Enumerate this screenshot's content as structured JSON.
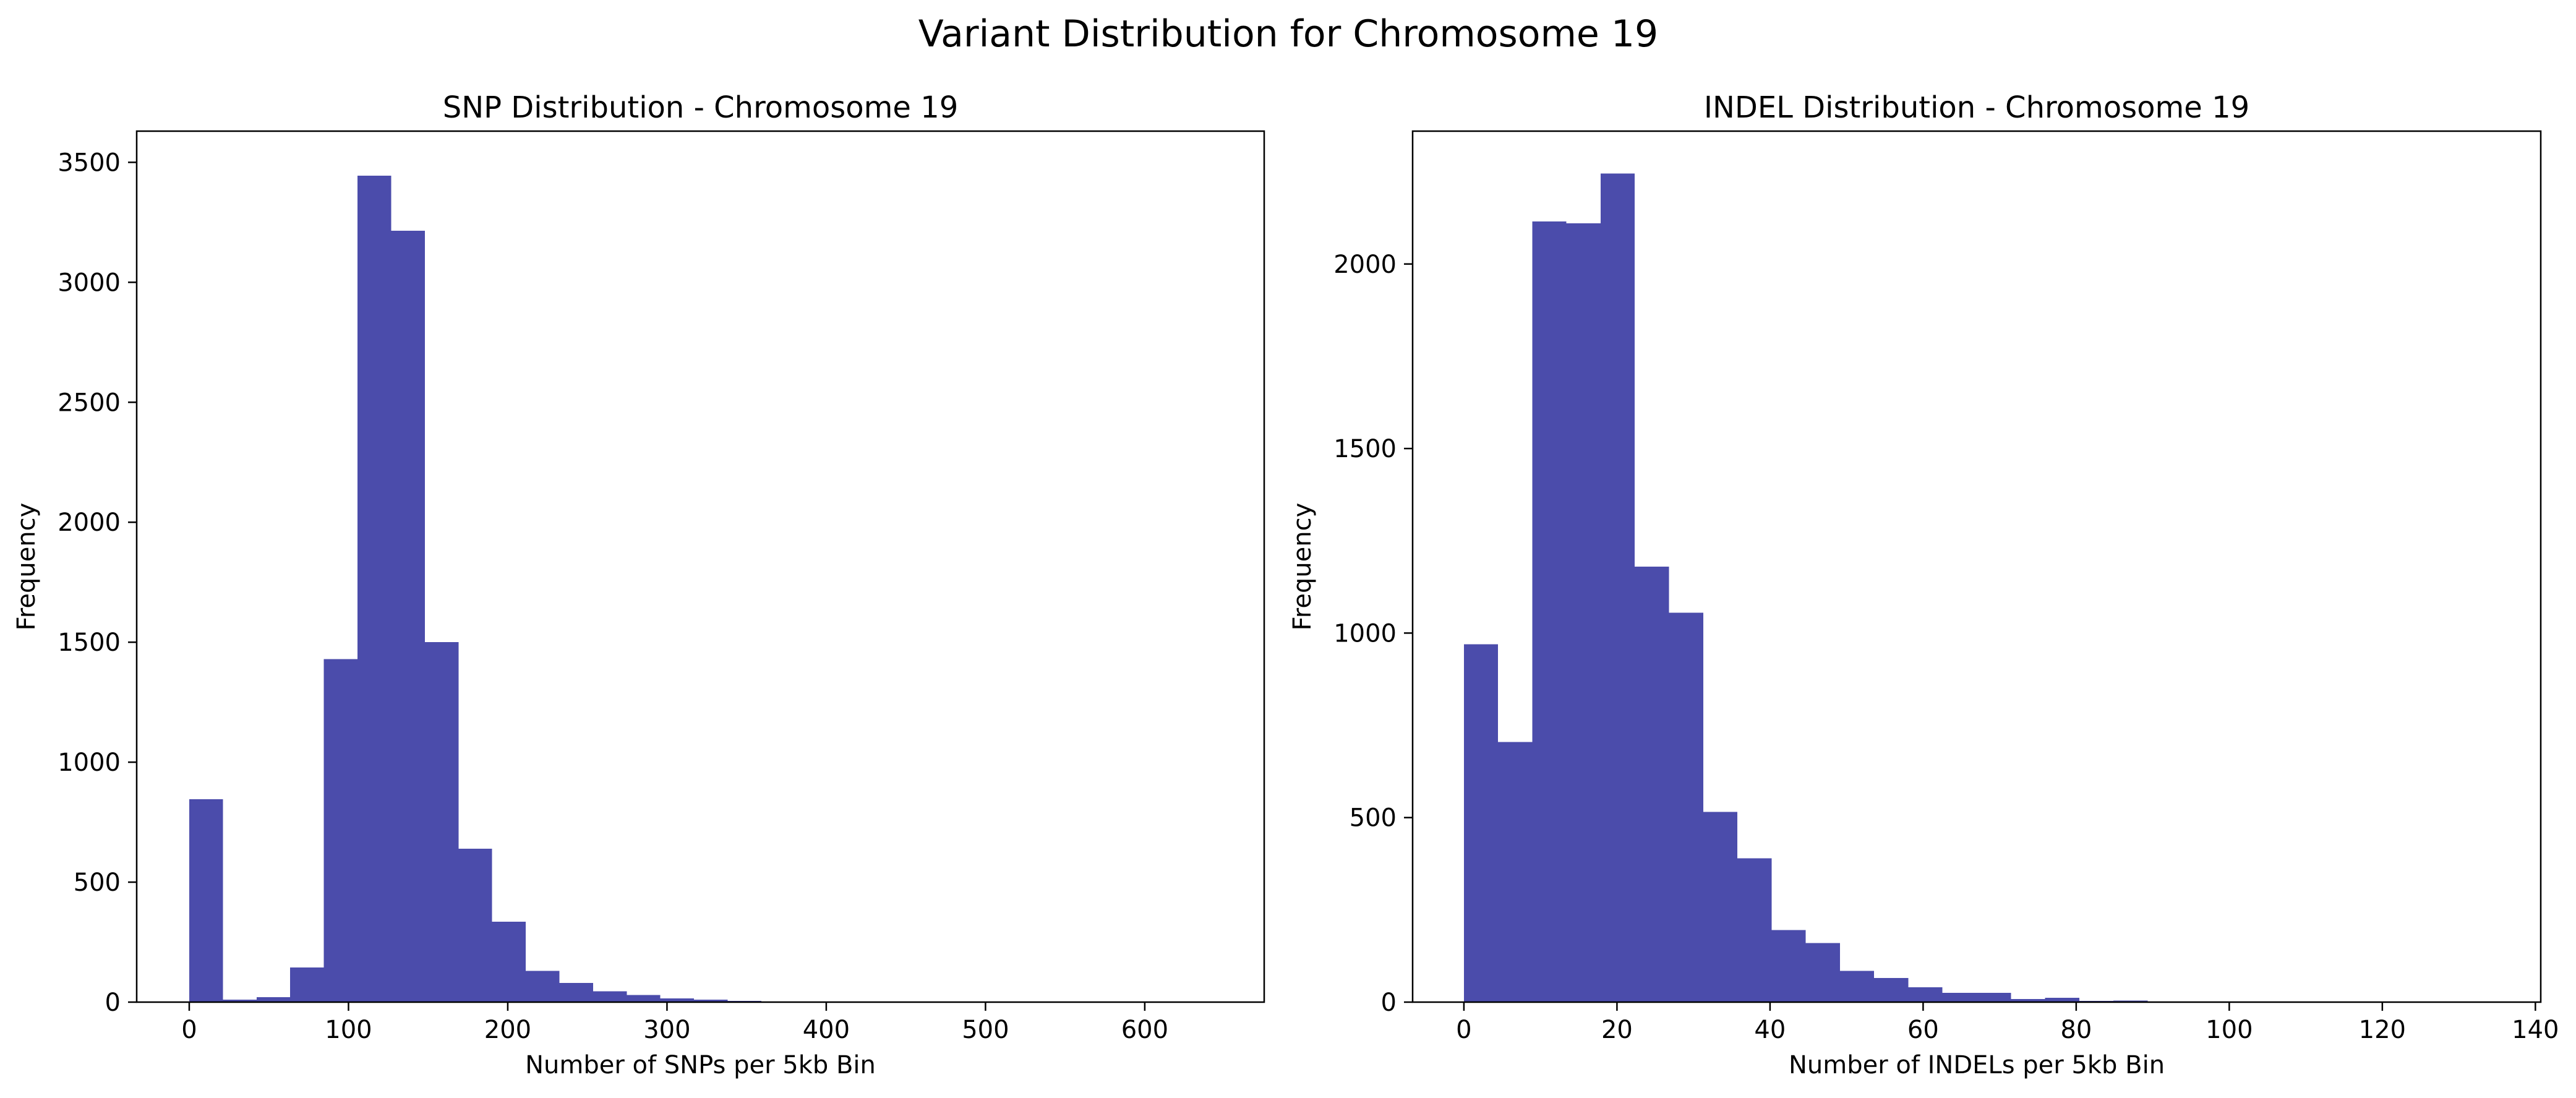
{
  "figure": {
    "title": "Variant Distribution for Chromosome 19",
    "bar_color": "#4b4cab"
  },
  "chart_data": [
    {
      "type": "bar",
      "title": "SNP Distribution - Chromosome 19",
      "xlabel": "Number of SNPs per 5kb Bin",
      "ylabel": "Frequency",
      "xlim": [
        -33,
        675
      ],
      "ylim": [
        0,
        3630
      ],
      "xticks": [
        0,
        100,
        200,
        300,
        400,
        500,
        600
      ],
      "yticks": [
        0,
        500,
        1000,
        1500,
        2000,
        2500,
        3000,
        3500
      ],
      "bin_edges": [
        0,
        21.1,
        42.3,
        63.4,
        84.5,
        105.7,
        126.8,
        147.9,
        169.1,
        190.2,
        211.3,
        232.4,
        253.6,
        274.7,
        295.8,
        317.0,
        338.1,
        359.2,
        380.4,
        401.5,
        422.6,
        443.8,
        464.9,
        486.0,
        507.2,
        528.3,
        549.4,
        570.5,
        591.7,
        612.8,
        633.9
      ],
      "values": [
        845,
        10,
        20,
        145,
        1430,
        3445,
        3215,
        1500,
        640,
        335,
        130,
        80,
        45,
        30,
        15,
        10,
        5,
        3,
        2,
        1,
        1,
        0,
        0,
        0,
        0,
        0,
        0,
        0,
        0,
        0
      ]
    },
    {
      "type": "bar",
      "title": "INDEL Distribution - Chromosome 19",
      "xlabel": "Number of INDELs per 5kb Bin",
      "ylabel": "Frequency",
      "xlim": [
        -6.7,
        140.7
      ],
      "ylim": [
        0,
        2360
      ],
      "xticks": [
        0,
        20,
        40,
        60,
        80,
        100,
        120,
        140
      ],
      "yticks": [
        0,
        500,
        1000,
        1500,
        2000
      ],
      "bin_edges": [
        0,
        4.47,
        8.93,
        13.4,
        17.87,
        22.33,
        26.8,
        31.27,
        35.73,
        40.2,
        44.67,
        49.13,
        53.6,
        58.07,
        62.53,
        67.0,
        71.47,
        75.93,
        80.4,
        84.87,
        89.33,
        93.8,
        98.27,
        102.73,
        107.2,
        111.67,
        116.13,
        120.6,
        125.07,
        129.53,
        134.0
      ],
      "values": [
        970,
        705,
        2115,
        2110,
        2245,
        1180,
        1055,
        515,
        390,
        195,
        160,
        85,
        65,
        40,
        25,
        25,
        8,
        12,
        3,
        4,
        2,
        1,
        2,
        0,
        0,
        0,
        0,
        0,
        0,
        1
      ]
    }
  ]
}
